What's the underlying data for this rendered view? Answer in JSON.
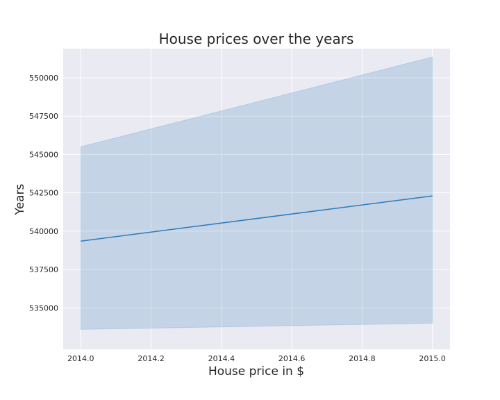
{
  "chart_data": {
    "type": "line",
    "title": "House prices over the years",
    "xlabel": "House price in $",
    "ylabel": "Years",
    "xlim": [
      2013.95,
      2015.05
    ],
    "ylim": [
      532300,
      551900
    ],
    "x_ticks": [
      2014.0,
      2014.2,
      2014.4,
      2014.6,
      2014.8,
      2015.0
    ],
    "x_tick_labels": [
      "2014.0",
      "2014.2",
      "2014.4",
      "2014.6",
      "2014.8",
      "2015.0"
    ],
    "y_ticks": [
      535000,
      537500,
      540000,
      542500,
      545000,
      547500,
      550000
    ],
    "y_tick_labels": [
      "535000",
      "537500",
      "540000",
      "542500",
      "545000",
      "547500",
      "550000"
    ],
    "grid": true,
    "series": [
      {
        "x": [
          2014.0,
          2015.0
        ],
        "y": [
          539350,
          542300
        ],
        "ci_lower": [
          533600,
          534000
        ],
        "ci_upper": [
          545500,
          551350
        ],
        "color": "#2b7bba",
        "band_color": "#2b7bba"
      }
    ],
    "colors": {
      "plot_background": "#eaeaf2",
      "grid": "#ffffff"
    }
  }
}
